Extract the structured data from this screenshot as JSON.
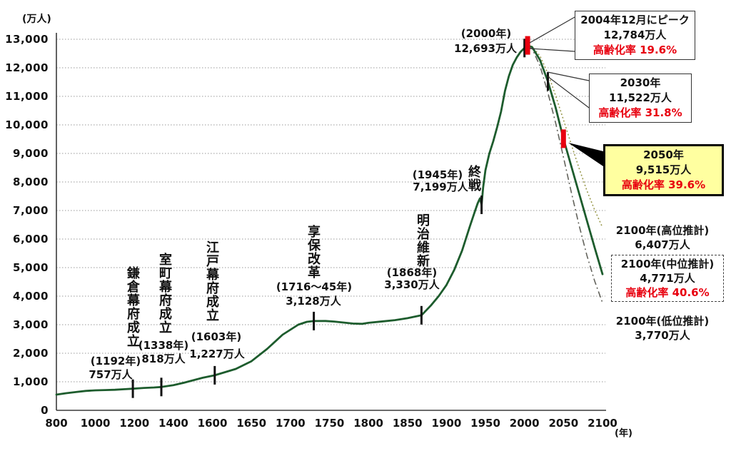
{
  "colors": {
    "line_green": "#1d5c2d",
    "projection_high": "#9a9a4e",
    "projection_low": "#63635c",
    "marker_red": "#e8000f",
    "highlight_box_bg": "#ffffa0",
    "grid_gray": "#9a9a9a"
  },
  "chart_data": {
    "type": "line",
    "title": "",
    "x_axis": {
      "unit_label": "(年)",
      "ticks": [
        800,
        1000,
        1200,
        1400,
        1600,
        1650,
        1700,
        1750,
        1800,
        1850,
        1900,
        1950,
        2000,
        2050,
        2100
      ],
      "scale_note": "ticks equally spaced: 200-year steps before 1600, 50-year steps after 1600"
    },
    "y_axis": {
      "unit_label": "(万人)",
      "min": 0,
      "max": 13000,
      "tick_step": 1000,
      "grid": "dotted"
    },
    "series": [
      {
        "id": "history",
        "name": "人口実績",
        "style": "solid",
        "points": [
          [
            800,
            550
          ],
          [
            850,
            600
          ],
          [
            900,
            640
          ],
          [
            950,
            680
          ],
          [
            1000,
            700
          ],
          [
            1050,
            710
          ],
          [
            1100,
            720
          ],
          [
            1150,
            740
          ],
          [
            1192,
            757
          ],
          [
            1250,
            785
          ],
          [
            1300,
            800
          ],
          [
            1338,
            818
          ],
          [
            1400,
            880
          ],
          [
            1450,
            960
          ],
          [
            1500,
            1050
          ],
          [
            1550,
            1140
          ],
          [
            1603,
            1227
          ],
          [
            1630,
            1450
          ],
          [
            1650,
            1720
          ],
          [
            1670,
            2150
          ],
          [
            1690,
            2650
          ],
          [
            1710,
            3000
          ],
          [
            1721,
            3100
          ],
          [
            1730,
            3128
          ],
          [
            1745,
            3130
          ],
          [
            1756,
            3110
          ],
          [
            1780,
            3040
          ],
          [
            1792,
            3030
          ],
          [
            1800,
            3065
          ],
          [
            1820,
            3120
          ],
          [
            1834,
            3160
          ],
          [
            1850,
            3228
          ],
          [
            1868,
            3330
          ],
          [
            1880,
            3670
          ],
          [
            1890,
            4000
          ],
          [
            1900,
            4390
          ],
          [
            1910,
            4920
          ],
          [
            1920,
            5596
          ],
          [
            1930,
            6445
          ],
          [
            1936,
            6930
          ],
          [
            1940,
            7250
          ],
          [
            1943,
            7430
          ],
          [
            1945,
            7199
          ],
          [
            1947,
            7810
          ],
          [
            1950,
            8411
          ],
          [
            1955,
            9000
          ],
          [
            1960,
            9430
          ],
          [
            1965,
            9920
          ],
          [
            1970,
            10467
          ],
          [
            1975,
            11190
          ],
          [
            1980,
            11706
          ],
          [
            1985,
            12100
          ],
          [
            1990,
            12361
          ],
          [
            1995,
            12557
          ],
          [
            2000,
            12693
          ],
          [
            2004,
            12784
          ]
        ]
      },
      {
        "id": "high",
        "name": "高位推計",
        "style": "dotted",
        "points": [
          [
            2004,
            12784
          ],
          [
            2010,
            12748
          ],
          [
            2020,
            12410
          ],
          [
            2030,
            11800
          ],
          [
            2040,
            11020
          ],
          [
            2050,
            10180
          ],
          [
            2060,
            9320
          ],
          [
            2070,
            8480
          ],
          [
            2080,
            7700
          ],
          [
            2090,
            7020
          ],
          [
            2100,
            6407
          ]
        ]
      },
      {
        "id": "mid",
        "name": "中位推計",
        "style": "solid",
        "points": [
          [
            2004,
            12784
          ],
          [
            2010,
            12718
          ],
          [
            2020,
            12270
          ],
          [
            2030,
            11522
          ],
          [
            2040,
            10600
          ],
          [
            2050,
            9515
          ],
          [
            2060,
            8560
          ],
          [
            2070,
            7600
          ],
          [
            2080,
            6650
          ],
          [
            2090,
            5700
          ],
          [
            2100,
            4771
          ]
        ]
      },
      {
        "id": "low",
        "name": "低位推計",
        "style": "dashdot",
        "points": [
          [
            2004,
            12784
          ],
          [
            2010,
            12660
          ],
          [
            2020,
            12060
          ],
          [
            2030,
            11130
          ],
          [
            2040,
            10060
          ],
          [
            2050,
            8870
          ],
          [
            2060,
            7650
          ],
          [
            2070,
            6480
          ],
          [
            2080,
            5430
          ],
          [
            2090,
            4530
          ],
          [
            2100,
            3770
          ]
        ]
      }
    ],
    "event_markers": [
      {
        "year": 1192,
        "value": 757,
        "type": "tick"
      },
      {
        "year": 1338,
        "value": 818,
        "type": "tick"
      },
      {
        "year": 1603,
        "value": 1227,
        "type": "tick"
      },
      {
        "year": 1730,
        "value": 3128,
        "type": "tick"
      },
      {
        "year": 1868,
        "value": 3330,
        "type": "tick"
      },
      {
        "year": 1945,
        "value": 7199,
        "type": "tick"
      },
      {
        "year": 2000,
        "value": 12693,
        "type": "tick"
      },
      {
        "year": 2030,
        "value": 11522,
        "type": "tick"
      },
      {
        "year": 2004,
        "value": 12784,
        "type": "redbar"
      },
      {
        "year": 2050,
        "value": 9515,
        "type": "redbar"
      }
    ]
  },
  "annotations": {
    "y_unit": "(万人)",
    "x_unit": "(年)",
    "kamakura": {
      "era": "鎌倉幕府成立",
      "year": "(1192年)",
      "pop": "757万人"
    },
    "muromachi": {
      "era": "室町幕府成立",
      "year": "(1338年)",
      "pop": "818万人"
    },
    "edo": {
      "era": "江戸幕府成立",
      "year": "(1603年)",
      "pop": "1,227万人"
    },
    "kyoho": {
      "era": "享保改革",
      "year": "(1716～45年)",
      "pop": "3,128万人"
    },
    "meiji": {
      "era": "明治維新",
      "year": "(1868年)",
      "pop": "3,330万人"
    },
    "shusen": {
      "era": "終戦",
      "year": "(1945年)",
      "pop": "7,199万人"
    },
    "y2000": {
      "year": "(2000年)",
      "pop": "12,693万人"
    },
    "peak_box": {
      "title": "2004年12月にピーク",
      "pop": "12,784万人",
      "aging": "高齢化率 19.6%"
    },
    "box2030": {
      "title": "2030年",
      "pop": "11,522万人",
      "aging": "高齢化率 31.8%"
    },
    "box2050": {
      "title": "2050年",
      "pop": "9,515万人",
      "aging": "高齢化率 39.6%"
    },
    "high2100": {
      "title": "2100年(高位推計)",
      "pop": "6,407万人"
    },
    "mid2100": {
      "title": "2100年(中位推計)",
      "pop": "4,771万人",
      "aging": "高齢化率 40.6%"
    },
    "low2100": {
      "title": "2100年(低位推計)",
      "pop": "3,770万人"
    }
  }
}
